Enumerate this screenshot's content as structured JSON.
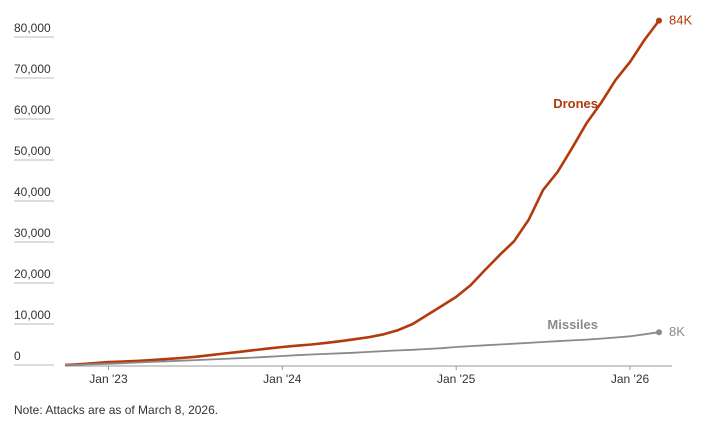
{
  "chart_data": {
    "type": "line",
    "x": [
      "2022-10",
      "2022-11",
      "2022-12",
      "2023-01",
      "2023-02",
      "2023-03",
      "2023-04",
      "2023-05",
      "2023-06",
      "2023-07",
      "2023-08",
      "2023-09",
      "2023-10",
      "2023-11",
      "2023-12",
      "2024-01",
      "2024-02",
      "2024-03",
      "2024-04",
      "2024-05",
      "2024-06",
      "2024-07",
      "2024-08",
      "2024-09",
      "2024-10",
      "2024-11",
      "2024-12",
      "2025-01",
      "2025-02",
      "2025-03",
      "2025-04",
      "2025-05",
      "2025-06",
      "2025-07",
      "2025-08",
      "2025-09",
      "2025-10",
      "2025-11",
      "2025-12",
      "2026-01",
      "2026-02",
      "2026-03"
    ],
    "series": [
      {
        "name": "Drones",
        "color": "#b33a0d",
        "values": [
          0,
          200,
          450,
          700,
          850,
          1000,
          1200,
          1450,
          1700,
          2000,
          2400,
          2800,
          3200,
          3600,
          4000,
          4400,
          4700,
          5000,
          5400,
          5800,
          6300,
          6800,
          7500,
          8500,
          10000,
          12200,
          14400,
          16600,
          19500,
          23200,
          26800,
          30200,
          35400,
          42700,
          47100,
          52900,
          59000,
          63900,
          69500,
          73900,
          79300,
          84000
        ],
        "value_labels": [
          null,
          null,
          null,
          null,
          null,
          null,
          null,
          null,
          null,
          null,
          null,
          null,
          null,
          null,
          null,
          null,
          null,
          null,
          null,
          null,
          null,
          null,
          null,
          null,
          null,
          null,
          null,
          null,
          null,
          null,
          null,
          null,
          null,
          null,
          null,
          null,
          null,
          null,
          null,
          null,
          null,
          "84K"
        ]
      },
      {
        "name": "Missiles",
        "color": "#8a8a8a",
        "values": [
          0,
          100,
          200,
          300,
          450,
          600,
          750,
          900,
          1050,
          1200,
          1350,
          1500,
          1650,
          1800,
          2000,
          2200,
          2400,
          2550,
          2700,
          2850,
          3000,
          3200,
          3400,
          3550,
          3700,
          3900,
          4100,
          4400,
          4600,
          4800,
          5000,
          5200,
          5400,
          5600,
          5800,
          6000,
          6200,
          6450,
          6700,
          7000,
          7500,
          8000
        ],
        "value_labels": [
          null,
          null,
          null,
          null,
          null,
          null,
          null,
          null,
          null,
          null,
          null,
          null,
          null,
          null,
          null,
          null,
          null,
          null,
          null,
          null,
          null,
          null,
          null,
          null,
          null,
          null,
          null,
          null,
          null,
          null,
          null,
          null,
          null,
          null,
          null,
          null,
          null,
          null,
          null,
          null,
          null,
          "8K"
        ]
      }
    ],
    "xlim": [
      "2022-10",
      "2026-03"
    ],
    "xticks": [
      {
        "value": "2023-01",
        "label": "Jan '23"
      },
      {
        "value": "2024-01",
        "label": "Jan '24"
      },
      {
        "value": "2025-01",
        "label": "Jan '25"
      },
      {
        "value": "2026-01",
        "label": "Jan '26"
      }
    ],
    "ylim": [
      0,
      80000
    ],
    "yticks": [
      0,
      {
        "value": 10000,
        "label": "10,000"
      },
      {
        "value": 20000,
        "label": "20,000"
      },
      {
        "value": 30000,
        "label": "30,000"
      },
      {
        "value": 40000,
        "label": "40,000"
      },
      {
        "value": 50000,
        "label": "50,000"
      },
      {
        "value": 60000,
        "label": "60,000"
      },
      {
        "value": 70000,
        "label": "70,000"
      },
      {
        "value": 80000,
        "label": "80,000"
      }
    ],
    "note": "Note: Attacks are as of March 8, 2026."
  }
}
